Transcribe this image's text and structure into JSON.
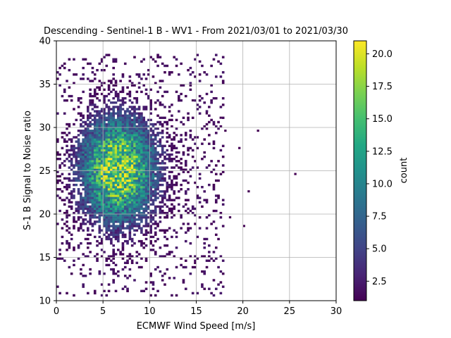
{
  "chart_data": {
    "type": "heatmap",
    "title": "Descending - Sentinel-1 B - WV1 - From 2021/03/01 to 2021/03/30",
    "xlabel": "ECMWF Wind Speed [m/s]",
    "ylabel": "S-1 B Signal to Noise ratio",
    "xlim": [
      0,
      30
    ],
    "ylim": [
      10,
      40
    ],
    "xticks": [
      0,
      5,
      10,
      15,
      20,
      25,
      30
    ],
    "yticks": [
      10,
      15,
      20,
      25,
      30,
      35,
      40
    ],
    "grid": true,
    "colormap": "viridis",
    "colorbar": {
      "label": "count",
      "range": [
        1,
        21
      ],
      "ticks": [
        2.5,
        5.0,
        7.5,
        10.0,
        12.5,
        15.0,
        17.5,
        20.0
      ],
      "tick_labels": [
        "2.5",
        "5.0",
        "7.5",
        "10.0",
        "12.5",
        "15.0",
        "17.5",
        "20.0"
      ]
    },
    "density": {
      "peak_count": 21,
      "core_center": [
        6.5,
        25.0
      ],
      "core_spread": [
        2.8,
        4.2
      ],
      "x_extent": [
        0,
        18
      ],
      "y_extent": [
        10.5,
        38.5
      ],
      "outliers": [
        [
          25.5,
          24.5
        ],
        [
          21.5,
          29.5
        ],
        [
          20.5,
          22.5
        ],
        [
          20.0,
          18.5
        ],
        [
          18.5,
          19.5
        ],
        [
          19.5,
          27.5
        ],
        [
          18.0,
          29.5
        ],
        [
          17.5,
          31.0
        ],
        [
          14.5,
          33.0
        ],
        [
          16.0,
          31.5
        ]
      ]
    }
  }
}
